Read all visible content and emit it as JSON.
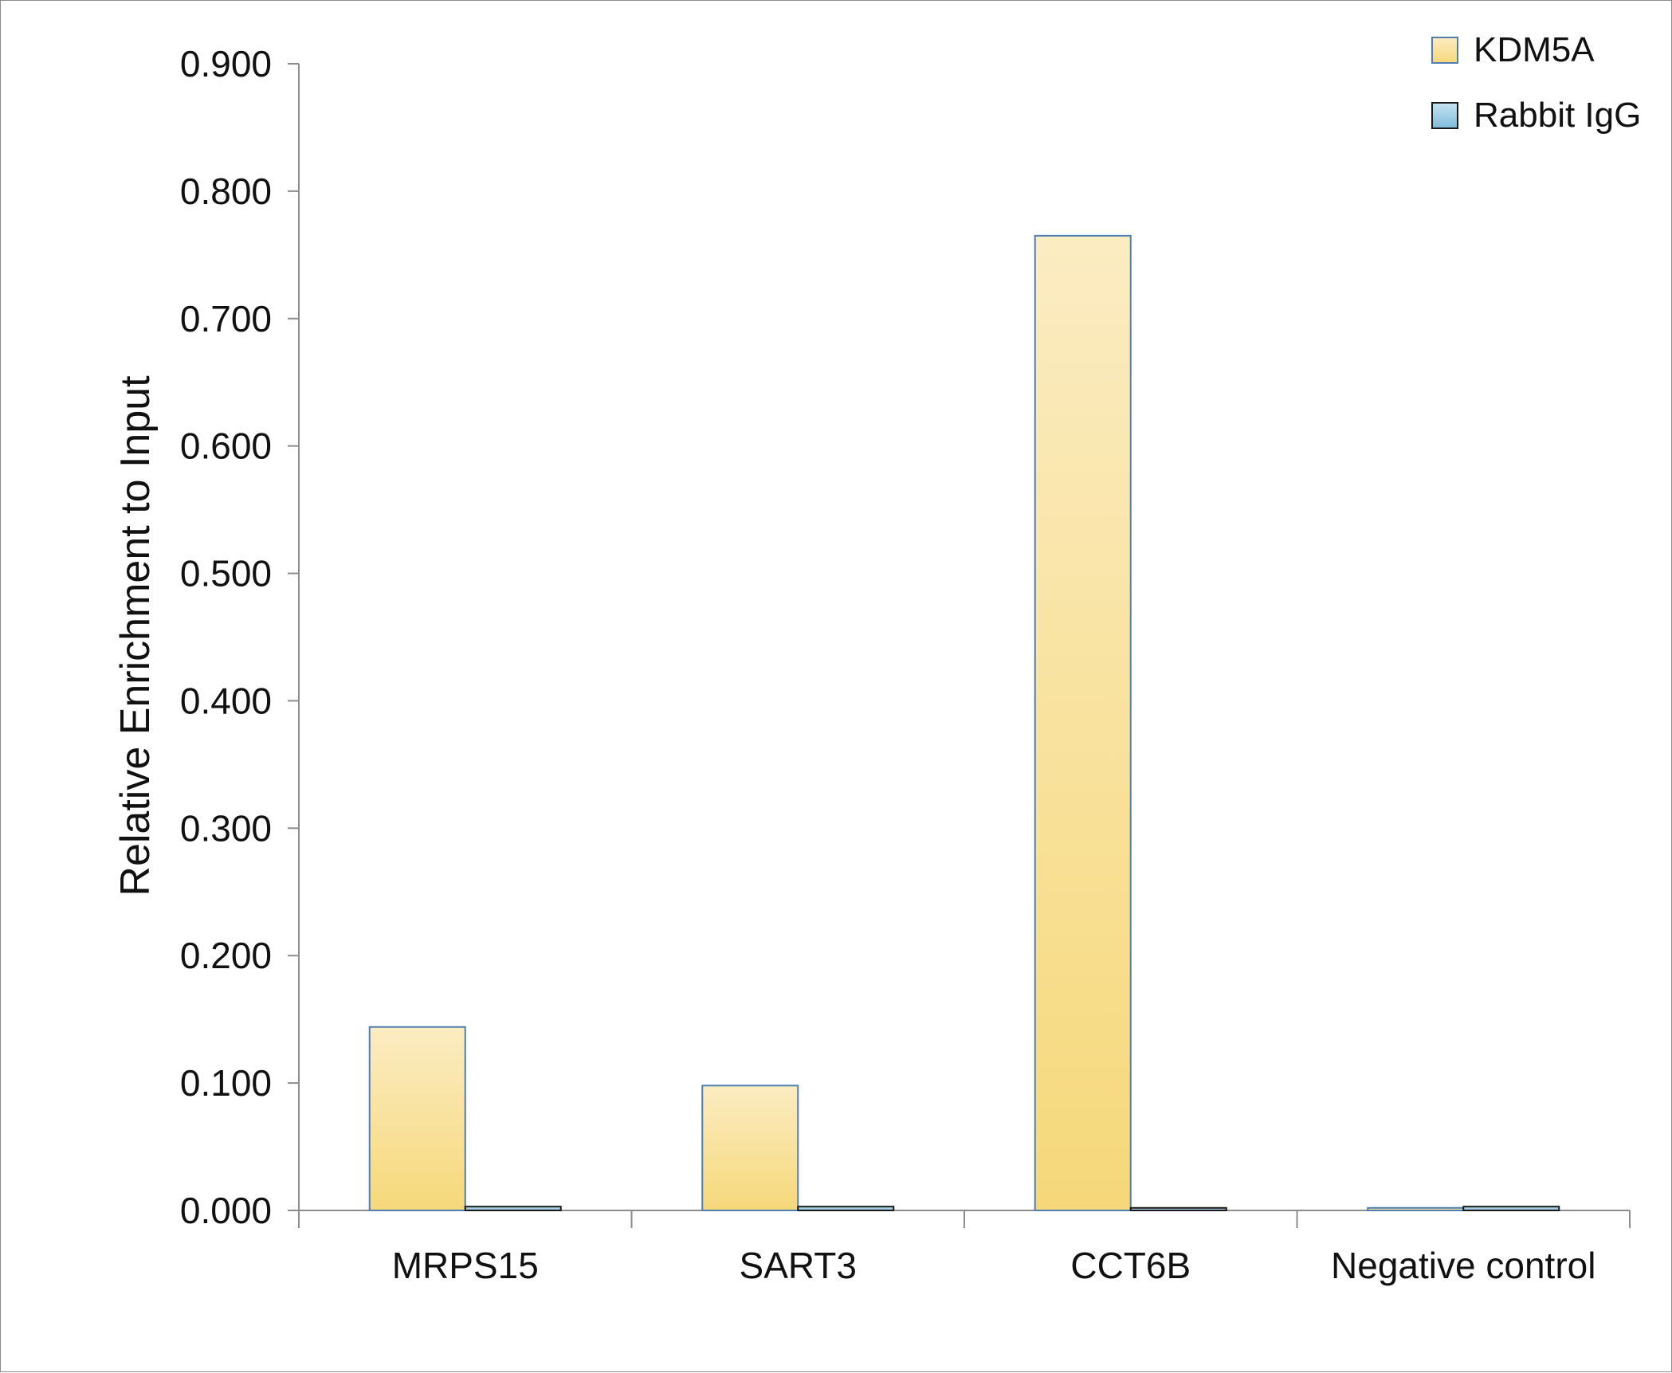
{
  "chart_data": {
    "type": "bar",
    "title": "",
    "xlabel": "",
    "ylabel": "Relative Enrichment to Input",
    "categories": [
      "MRPS15",
      "SART3",
      "CCT6B",
      "Negative control"
    ],
    "series": [
      {
        "name": "KDM5A",
        "values": [
          0.144,
          0.098,
          0.765,
          0.002
        ]
      },
      {
        "name": "Rabbit IgG",
        "values": [
          0.003,
          0.003,
          0.002,
          0.003
        ]
      }
    ],
    "ylim": [
      0,
      0.9
    ],
    "yticks": [
      "0.000",
      "0.100",
      "0.200",
      "0.300",
      "0.400",
      "0.500",
      "0.600",
      "0.700",
      "0.800",
      "0.900"
    ],
    "grid": false,
    "legend": "top-right",
    "colors": {
      "KDM5A_top": "#fbecc2",
      "KDM5A_bottom": "#f6d87a",
      "KDM5A_border": "#4f7fb0",
      "IgG_top": "#c6e4f2",
      "IgG_bottom": "#7fbad8",
      "IgG_border": "#1a1a1a",
      "axis": "#8c8c8c"
    }
  }
}
